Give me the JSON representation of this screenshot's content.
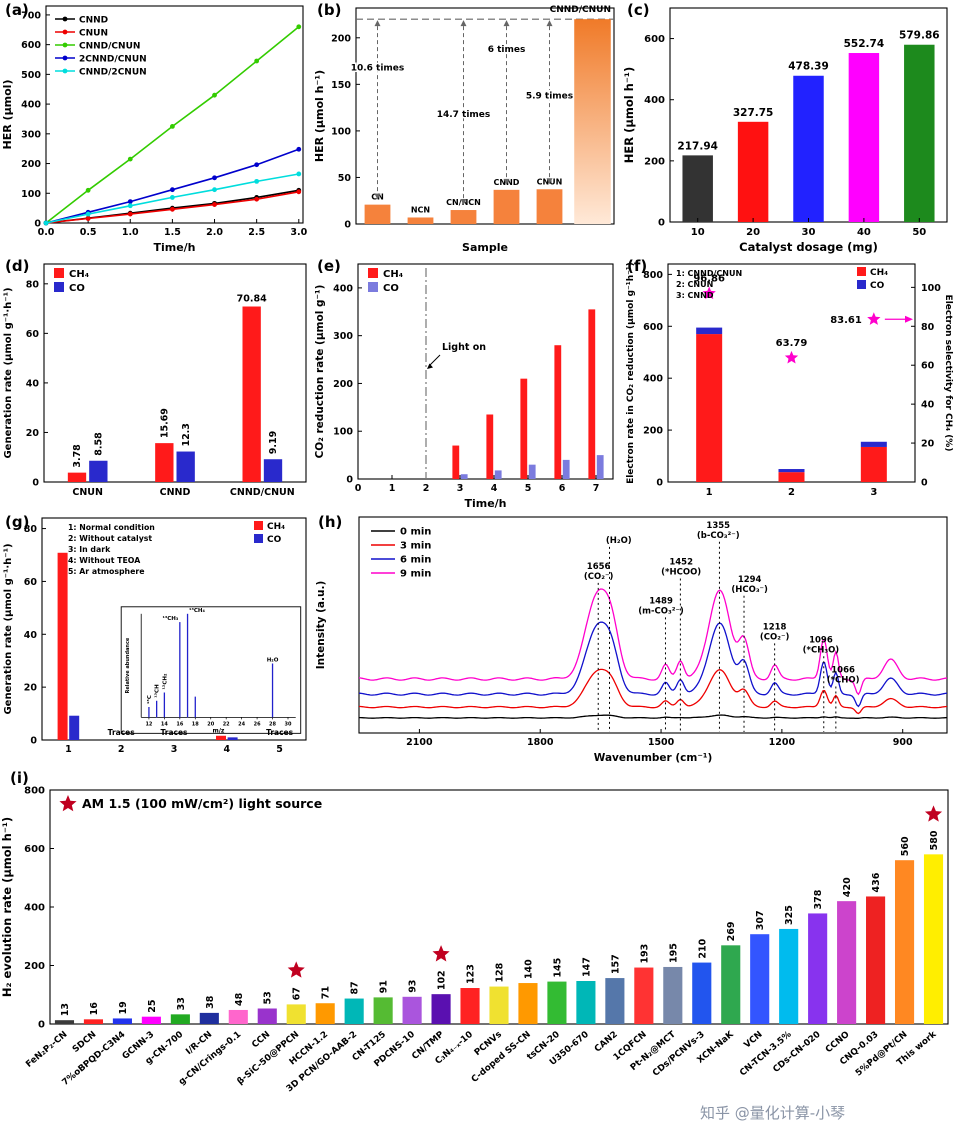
{
  "page": {
    "watermark": "知乎 @量化计算-小琴",
    "background": "#ffffff"
  },
  "panels": {
    "a": {
      "label": "(a)"
    },
    "b": {
      "label": "(b)"
    },
    "c": {
      "label": "(c)"
    },
    "d": {
      "label": "(d)"
    },
    "e": {
      "label": "(e)"
    },
    "f": {
      "label": "(f)"
    },
    "g": {
      "label": "(g)"
    },
    "h": {
      "label": "(h)"
    },
    "i": {
      "label": "(i)"
    }
  },
  "chart_data": [
    {
      "panel": "a",
      "type": "line",
      "xlabel": "Time/h",
      "ylabel": "HER (µmol)",
      "x": [
        0,
        0.5,
        1,
        1.5,
        2,
        2.5,
        3
      ],
      "xticks": [
        "0.0",
        "0.5",
        "1.0",
        "1.5",
        "2.0",
        "2.5",
        "3.0"
      ],
      "xlim": [
        0,
        3.05
      ],
      "ylim": [
        0,
        730
      ],
      "yticks": [
        0,
        100,
        200,
        300,
        400,
        500,
        600,
        700
      ],
      "series": [
        {
          "name": "CNND",
          "color": "#000000",
          "values": [
            0,
            16,
            33,
            50,
            66,
            86,
            110
          ]
        },
        {
          "name": "CNUN",
          "color": "#ee0000",
          "values": [
            0,
            15,
            30,
            46,
            62,
            80,
            105
          ]
        },
        {
          "name": "CNND/CNUN",
          "color": "#33cc00",
          "values": [
            0,
            110,
            215,
            325,
            430,
            545,
            660
          ]
        },
        {
          "name": "2CNND/CNUN",
          "color": "#0000cc",
          "values": [
            0,
            36,
            72,
            112,
            152,
            196,
            248
          ]
        },
        {
          "name": "CNND/2CNUN",
          "color": "#00dddd",
          "values": [
            0,
            30,
            58,
            86,
            112,
            140,
            165
          ]
        }
      ]
    },
    {
      "panel": "b",
      "type": "bar_annotated",
      "xlabel": "Sample",
      "ylabel": "HER (µmol h⁻¹)",
      "categories": [
        "CN",
        "NCN",
        "CN/NCN",
        "CNND",
        "CNUN",
        "CNND/CNUN"
      ],
      "values": [
        20.8,
        7,
        15,
        36.7,
        37.3,
        220
      ],
      "bar_color": "#f5823c",
      "ylim": [
        0,
        232
      ],
      "yticks": [
        0,
        50,
        100,
        150,
        200
      ],
      "ref_line": 220,
      "annotations": [
        {
          "text": "10.6 times",
          "bar": 0,
          "text_y": 165
        },
        {
          "text": "14.7 times",
          "bar": 2,
          "text_y": 115
        },
        {
          "text": "6 times",
          "bar": 3,
          "text_y": 185
        },
        {
          "text": "5.9 times",
          "bar": 4,
          "text_y": 135
        }
      ]
    },
    {
      "panel": "c",
      "type": "bar",
      "xlabel": "Catalyst dosage (mg)",
      "ylabel": "HER (µmol h⁻¹)",
      "categories": [
        "10",
        "20",
        "30",
        "40",
        "50"
      ],
      "values": [
        217.94,
        327.75,
        478.39,
        552.74,
        579.86
      ],
      "colors": [
        "#333333",
        "#ff1111",
        "#2222ff",
        "#ff00ff",
        "#1d8a1d"
      ],
      "ylim": [
        0,
        700
      ],
      "yticks": [
        0,
        200,
        400,
        600
      ]
    },
    {
      "panel": "d",
      "type": "grouped_bar",
      "ylabel": "Generation rate (µmol g⁻¹·h⁻¹)",
      "categories": [
        "CNUN",
        "CNND",
        "CNND/CNUN"
      ],
      "series": [
        {
          "name": "CH₄",
          "color": "#ff1a1a",
          "values": [
            3.78,
            15.69,
            70.84
          ]
        },
        {
          "name": "CO",
          "color": "#2929cc",
          "values": [
            8.58,
            12.3,
            9.19
          ]
        }
      ],
      "ylim": [
        0,
        88
      ],
      "yticks": [
        0,
        20,
        40,
        60,
        80
      ]
    },
    {
      "panel": "e",
      "type": "time_bar",
      "xlabel": "Time/h",
      "ylabel": "CO₂ reduction rate (µmol g⁻¹)",
      "xlim": [
        0,
        7.5
      ],
      "xticks": [
        0,
        1,
        2,
        3,
        4,
        5,
        6,
        7
      ],
      "times": [
        3,
        4,
        5,
        6,
        7
      ],
      "series": [
        {
          "name": "CH₄",
          "color": "#ff1a1a",
          "values": [
            70,
            135,
            210,
            280,
            355
          ]
        },
        {
          "name": "CO",
          "color": "#7b7bde",
          "values": [
            10,
            18,
            30,
            40,
            50
          ]
        }
      ],
      "light_on": {
        "x": 2,
        "text": "Light on"
      },
      "ylim": [
        0,
        450
      ],
      "yticks": [
        0,
        100,
        200,
        300,
        400
      ]
    },
    {
      "panel": "f",
      "type": "stacked_star",
      "ylabel_left": "Electron rate in CO₂ reduction (µmol g⁻¹h⁻¹)",
      "ylabel_right": "Electron selectivity for CH₄ (%)",
      "categories": [
        "1",
        "2",
        "3"
      ],
      "legend_numbers": [
        "1: CNND/CNUN",
        "2: CNUN",
        "3: CNND"
      ],
      "series": [
        {
          "name": "CH₄",
          "color": "#ff1a1a",
          "values": [
            570,
            38,
            135
          ]
        },
        {
          "name": "CO",
          "color": "#2929cc",
          "values": [
            25,
            12,
            20
          ]
        }
      ],
      "stars": {
        "color": "#ff00cc",
        "values": [
          96.86,
          63.79,
          83.61
        ],
        "labels": [
          "96.86",
          "63.79",
          "83.61"
        ]
      },
      "ylim_left": [
        0,
        840
      ],
      "yticks_left": [
        0,
        200,
        400,
        600,
        800
      ],
      "ylim_right": [
        0,
        112
      ],
      "yticks_right": [
        0,
        20,
        40,
        60,
        80,
        100
      ]
    },
    {
      "panel": "g",
      "type": "bar_traces",
      "ylabel": "Generation rate (µmol g⁻¹·h⁻¹)",
      "categories": [
        "1",
        "2",
        "3",
        "4",
        "5"
      ],
      "series": [
        {
          "name": "CH₄",
          "color": "#ff1a1a",
          "values": [
            70.84,
            0,
            0,
            1.6,
            0
          ]
        },
        {
          "name": "CO",
          "color": "#2929cc",
          "values": [
            9.19,
            0,
            0,
            1.0,
            0
          ]
        }
      ],
      "traces_text": "Traces",
      "traces_at": [
        1,
        2,
        4
      ],
      "conditions": [
        "1: Normal condition",
        "2: Without catalyst",
        "3: In dark",
        "4: Without TEOA",
        "5: Ar atmosphere"
      ],
      "ylim": [
        0,
        84
      ],
      "yticks": [
        0,
        20,
        40,
        60,
        80
      ],
      "inset": {
        "xlabel": "m/z",
        "ylabel": "Relative abundance",
        "xticks": [
          12,
          14,
          16,
          18,
          20,
          22,
          24,
          26,
          28,
          30
        ],
        "peaks": [
          {
            "mz": 12,
            "h": 0.1,
            "label": "¹³C",
            "color": "#ee0000"
          },
          {
            "mz": 13,
            "h": 0.16,
            "label": "¹³CH",
            "color": "#ee0000"
          },
          {
            "mz": 14,
            "h": 0.24,
            "label": "¹²CH₂",
            "color": "#ee0000"
          },
          {
            "mz": 16,
            "h": 0.92,
            "label": "¹³CH₃",
            "color": "#2222cc"
          },
          {
            "mz": 17,
            "h": 1.0,
            "label": "¹³CH₄",
            "color": "#2222cc"
          },
          {
            "mz": 18,
            "h": 0.2,
            "label": "",
            "color": "#2222cc"
          },
          {
            "mz": 28,
            "h": 0.52,
            "label": "H₂O",
            "color": "#2222cc"
          }
        ]
      }
    },
    {
      "panel": "h",
      "type": "spectra",
      "xlabel": "Wavenumber (cm⁻¹)",
      "ylabel": "Intensity (a.u.)",
      "xlim": [
        2250,
        790
      ],
      "xticks": [
        2100,
        1800,
        1500,
        1200,
        900
      ],
      "series": [
        {
          "name": "0 min",
          "color": "#000000",
          "scale": 0.03,
          "offset": 0.02
        },
        {
          "name": "3 min",
          "color": "#ee0000",
          "scale": 0.42,
          "offset": 0.07
        },
        {
          "name": "6 min",
          "color": "#1111cc",
          "scale": 0.8,
          "offset": 0.13
        },
        {
          "name": "9 min",
          "color": "#ff00cc",
          "scale": 1.0,
          "offset": 0.2
        }
      ],
      "peaks": [
        {
          "c": 1656,
          "w": 42,
          "a": 1.0
        },
        {
          "c": 1620,
          "w": 25,
          "a": 0.3
        },
        {
          "c": 1489,
          "w": 13,
          "a": 0.16
        },
        {
          "c": 1452,
          "w": 13,
          "a": 0.22
        },
        {
          "c": 1355,
          "w": 38,
          "a": 1.02
        },
        {
          "c": 1294,
          "w": 18,
          "a": 0.42
        },
        {
          "c": 1218,
          "w": 13,
          "a": 0.16
        },
        {
          "c": 1096,
          "w": 12,
          "a": 0.48
        },
        {
          "c": 1066,
          "w": 9,
          "a": 0.3
        },
        {
          "c": 1010,
          "w": 10,
          "a": -0.18
        },
        {
          "c": 930,
          "w": 25,
          "a": 0.22
        }
      ],
      "annotations": [
        {
          "x": 1656,
          "lx": 1655,
          "y": 0.24,
          "lines": [
            "1656",
            "(CO₂⁻)"
          ],
          "color": "#ee0000"
        },
        {
          "x": 1628,
          "lx": 1605,
          "y": 0.12,
          "lines": [
            "(H₂O)"
          ],
          "color": "#ee0000"
        },
        {
          "x": 1489,
          "lx": 1500,
          "y": 0.4,
          "lines": [
            "1489",
            "(m-CO₃²⁻)"
          ],
          "color": "#1111cc"
        },
        {
          "x": 1452,
          "lx": 1450,
          "y": 0.22,
          "lines": [
            "1452",
            "(*HCOO)"
          ],
          "color": "#1111cc"
        },
        {
          "x": 1355,
          "lx": 1358,
          "y": 0.05,
          "lines": [
            "1355",
            "(b-CO₃²⁻)"
          ],
          "color": "#ee0000"
        },
        {
          "x": 1294,
          "lx": 1280,
          "y": 0.3,
          "lines": [
            "1294",
            "(HCO₃⁻)"
          ],
          "color": "#1111cc"
        },
        {
          "x": 1218,
          "lx": 1218,
          "y": 0.52,
          "lines": [
            "1218",
            "(CO₂⁻)"
          ],
          "color": "#ee0000"
        },
        {
          "x": 1096,
          "lx": 1103,
          "y": 0.58,
          "lines": [
            "1096",
            "(*CH₃O)"
          ],
          "color": "#1111cc"
        },
        {
          "x": 1066,
          "lx": 1048,
          "y": 0.72,
          "lines": [
            "1066",
            "(*CHO)"
          ],
          "color": "#ee0000"
        }
      ]
    },
    {
      "panel": "i",
      "type": "big_bar",
      "ylabel": "H₂ evolution rate (µmol h⁻¹)",
      "legend": "AM 1.5 (100 mW/cm²) light source",
      "star_color": "#c00020",
      "ylim": [
        0,
        800
      ],
      "yticks": [
        0,
        200,
        400,
        600,
        800
      ],
      "categories": [
        "FeN₂P₂-CN",
        "SDCN",
        "7%oBPQD-C3N4",
        "GCNN-3",
        "g-CN-700",
        "I/R-CN",
        "g-CN/Crings-0.1",
        "CCN",
        "β-SiC-50@PPCN",
        "HCCN-1.2",
        "3D PCN/GO-AAB-2",
        "CN-T125",
        "PDCNS-10",
        "CN/TMP",
        "C₃N₄₋ₓ-10",
        "PCNVs",
        "C-doped SS-CN",
        "tsCN-20",
        "U350-670",
        "CAN2",
        "1CQFCN",
        "Pt-N₂@MCT",
        "CDs/PCNVs-3",
        "XCN-NaK",
        "VCN",
        "CN-TCN-3.5%",
        "CDs-CN-020",
        "CCNO",
        "CNQ-0.03",
        "5%Pd@Pt/CN",
        "This work"
      ],
      "values": [
        13,
        16,
        19,
        25,
        33,
        38,
        48,
        53,
        67,
        71,
        87,
        91,
        93,
        102,
        123,
        128,
        140,
        145,
        147,
        157,
        193,
        195,
        210,
        269,
        307,
        325,
        378,
        420,
        436,
        560,
        580
      ],
      "colors": [
        "#3a3a3a",
        "#ff2222",
        "#2233ee",
        "#ff00ff",
        "#22aa22",
        "#1f2f9e",
        "#ff66cc",
        "#9933cc",
        "#f0e130",
        "#ff9900",
        "#00b7b7",
        "#55bb33",
        "#aa55dd",
        "#5a10b0",
        "#ff2222",
        "#f0e130",
        "#ff9900",
        "#33bb33",
        "#00b7b7",
        "#5577aa",
        "#ff3333",
        "#7788aa",
        "#2255ee",
        "#2fa84f",
        "#3355ff",
        "#00bbee",
        "#8833ee",
        "#cc44cc",
        "#ee2222",
        "#ff8822",
        "#ffee00"
      ],
      "stars_at": [
        8,
        13,
        30
      ]
    }
  ]
}
